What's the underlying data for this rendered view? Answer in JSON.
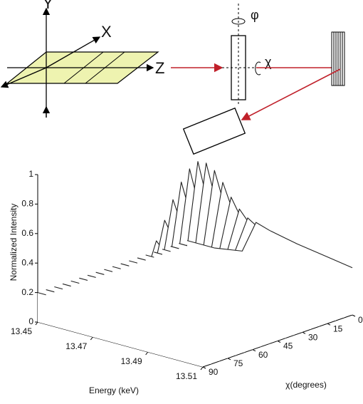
{
  "diagram": {
    "labels": {
      "y": "Y",
      "x": "X",
      "z": "Z",
      "phi": "φ",
      "chi": "χ"
    }
  },
  "chart_data": {
    "type": "waterfall",
    "ylabel": "Normalized Intensity",
    "xlabel": "Energy (keV)",
    "zlabel": "χ(degrees)",
    "x": [
      13.45,
      13.46,
      13.47,
      13.475,
      13.48,
      13.485,
      13.49,
      13.5,
      13.51
    ],
    "xlim": [
      13.45,
      13.51
    ],
    "xticks": [
      13.45,
      13.47,
      13.49,
      13.51
    ],
    "ylim": [
      0,
      1
    ],
    "yticks": [
      0,
      0.2,
      0.4,
      0.6,
      0.8,
      1
    ],
    "zlim": [
      90,
      0
    ],
    "zticks": [
      0,
      15,
      30,
      45,
      60,
      75,
      90
    ],
    "z": [
      0,
      5,
      10,
      15,
      20,
      25,
      30,
      35,
      40,
      45,
      50,
      55,
      60,
      65,
      70,
      75,
      80,
      85,
      90
    ],
    "color": "#222222",
    "series": [
      {
        "values": [
          0.2,
          0.2,
          0.23,
          0.45,
          0.42,
          0.4,
          0.38,
          0.35,
          0.32
        ]
      },
      {
        "values": [
          0.2,
          0.2,
          0.23,
          0.5,
          0.44,
          0.4,
          0.38,
          0.35,
          0.32
        ]
      },
      {
        "values": [
          0.2,
          0.2,
          0.23,
          0.58,
          0.47,
          0.4,
          0.38,
          0.35,
          0.32
        ]
      },
      {
        "values": [
          0.2,
          0.2,
          0.23,
          0.68,
          0.51,
          0.4,
          0.38,
          0.35,
          0.32
        ]
      },
      {
        "values": [
          0.2,
          0.2,
          0.23,
          0.8,
          0.56,
          0.4,
          0.38,
          0.35,
          0.32
        ]
      },
      {
        "values": [
          0.2,
          0.2,
          0.23,
          0.9,
          0.6,
          0.4,
          0.38,
          0.35,
          0.32
        ]
      },
      {
        "values": [
          0.2,
          0.2,
          0.23,
          0.97,
          0.63,
          0.4,
          0.38,
          0.35,
          0.32
        ]
      },
      {
        "values": [
          0.2,
          0.2,
          0.23,
          1.0,
          0.64,
          0.4,
          0.38,
          0.35,
          0.32
        ]
      },
      {
        "values": [
          0.2,
          0.2,
          0.23,
          0.97,
          0.63,
          0.4,
          0.38,
          0.35,
          0.32
        ]
      },
      {
        "values": [
          0.2,
          0.2,
          0.23,
          0.9,
          0.6,
          0.4,
          0.38,
          0.35,
          0.32
        ]
      },
      {
        "values": [
          0.2,
          0.2,
          0.23,
          0.8,
          0.56,
          0.4,
          0.38,
          0.35,
          0.32
        ]
      },
      {
        "values": [
          0.2,
          0.2,
          0.23,
          0.68,
          0.51,
          0.4,
          0.38,
          0.35,
          0.32
        ]
      },
      {
        "values": [
          0.2,
          0.2,
          0.23,
          0.56,
          0.46,
          0.4,
          0.38,
          0.35,
          0.32
        ]
      },
      {
        "values": [
          0.2,
          0.2,
          0.23,
          0.46,
          0.42,
          0.4,
          0.38,
          0.35,
          0.32
        ]
      },
      {
        "values": [
          0.2,
          0.2,
          0.23,
          0.4,
          0.4,
          0.4,
          0.38,
          0.35,
          0.32
        ]
      },
      {
        "values": [
          0.2,
          0.2,
          0.23,
          0.36,
          0.38,
          0.4,
          0.38,
          0.35,
          0.32
        ]
      },
      {
        "values": [
          0.2,
          0.2,
          0.23,
          0.34,
          0.37,
          0.4,
          0.38,
          0.35,
          0.32
        ]
      },
      {
        "values": [
          0.2,
          0.2,
          0.23,
          0.32,
          0.36,
          0.4,
          0.38,
          0.35,
          0.32
        ]
      },
      {
        "values": [
          0.2,
          0.2,
          0.23,
          0.3,
          0.35,
          0.4,
          0.38,
          0.35,
          0.32
        ]
      }
    ]
  }
}
